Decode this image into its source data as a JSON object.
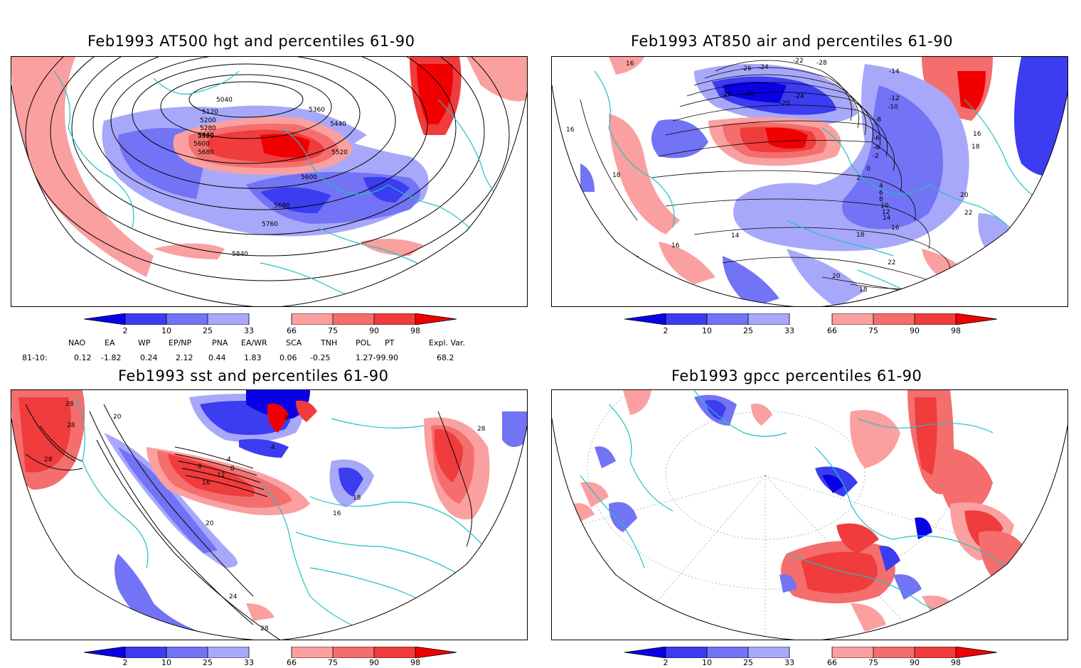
{
  "panels": [
    {
      "title": "Feb1993 AT500 hgt and percentiles 61-90",
      "contour_labels": [
        "5040",
        "5120",
        "5200",
        "5280",
        "5360",
        "5440",
        "5520",
        "5600",
        "5680",
        "5440",
        "5520",
        "5600",
        "5680",
        "5760",
        "5840"
      ]
    },
    {
      "title": "Feb1993 AT850 air and percentiles 61-90",
      "contour_labels": [
        "16",
        "-26",
        "-24",
        "-28",
        "-26",
        "-14",
        "-12",
        "-10",
        "-8",
        "-6",
        "-4",
        "-2",
        "0",
        "2",
        "4",
        "6",
        "8",
        "10",
        "12",
        "14",
        "16",
        "18",
        "18",
        "16",
        "20",
        "22",
        "14",
        "16",
        "18",
        "22",
        "20",
        "18",
        "16",
        "-22",
        "-20",
        "-24",
        "-26"
      ]
    },
    {
      "title": "Feb1993 sst and percentiles 61-90",
      "contour_labels": [
        "28",
        "28",
        "28",
        "20",
        "0",
        "4",
        "8",
        "12",
        "16",
        "20",
        "24",
        "28",
        "16",
        "18",
        "4",
        "28",
        "0"
      ]
    },
    {
      "title": "Feb1993 gpcc percentiles 61-90",
      "contour_labels": []
    }
  ],
  "colorbar": {
    "ticks": [
      "2",
      "10",
      "25",
      "33",
      "66",
      "75",
      "90",
      "98"
    ],
    "colors": {
      "b1": "#0a00e6",
      "b2": "#3c3cf0",
      "b3": "#7373f5",
      "b4": "#a8a8fa",
      "r1": "#faa0a0",
      "r2": "#f46e6e",
      "r3": "#f03c3c",
      "r4": "#f00000"
    }
  },
  "indices": {
    "headers": [
      "NAO",
      "EA",
      "WP",
      "EP/NP",
      "PNA",
      "EA/WR",
      "SCA",
      "TNH",
      "POL",
      "PT",
      "Expl. Var."
    ],
    "row_label": "81-10:",
    "values": [
      "0.12",
      "-1.82",
      "0.24",
      "2.12",
      "0.44",
      "1.83",
      "0.06",
      "-0.25",
      "1.27-99.90",
      "68.2"
    ]
  }
}
